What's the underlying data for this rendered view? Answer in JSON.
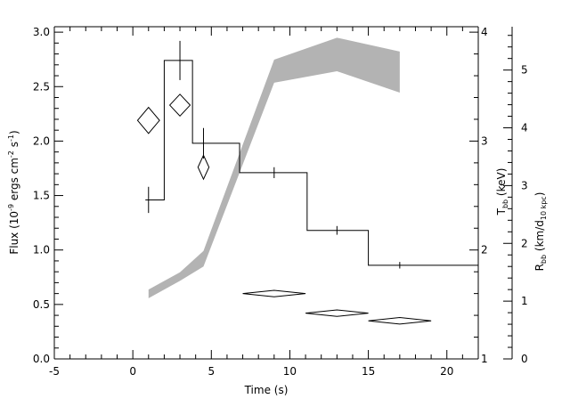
{
  "chart_data": {
    "type": "line",
    "xlabel": "Time (s)",
    "xlim": [
      -5,
      22
    ],
    "xticks": [
      -5,
      0,
      5,
      10,
      15,
      20
    ],
    "left_axis": {
      "label_main": "Flux (10",
      "label_exp1": "-9",
      "label_mid": " ergs cm",
      "label_exp2": "-2",
      "label_mid2": " s",
      "label_exp3": "-1",
      "label_end": ")",
      "ylim": [
        0,
        3.05
      ],
      "ticks": [
        "0.0",
        "0.5",
        "1.0",
        "1.5",
        "2.0",
        "2.5",
        "3.0"
      ]
    },
    "temp_axis": {
      "label_main": "T",
      "label_sub": "bb",
      "label_end": " (keV)",
      "ylim": [
        1,
        4.05
      ],
      "ticks": [
        "1",
        "2",
        "3",
        "4"
      ]
    },
    "radius_axis": {
      "label_main": "R",
      "label_sub": "bb",
      "label_mid": " (km/d",
      "label_sub2": "10 kpc",
      "label_end": ")",
      "ylim": [
        0,
        5.75
      ],
      "ticks": [
        "0",
        "1",
        "2",
        "3",
        "4",
        "5"
      ]
    },
    "series": [
      {
        "kind": "flux-histogram",
        "axis": "flux",
        "bins": [
          {
            "x0": 0.8,
            "x1": 2.0,
            "y": 1.46,
            "xc": 1.0,
            "yerr": 0.12
          },
          {
            "x0": 2.0,
            "x1": 3.8,
            "y": 2.74,
            "xc": 3.0,
            "yerr": 0.18
          },
          {
            "x0": 3.8,
            "x1": 6.8,
            "y": 1.98,
            "xc": 4.5,
            "yerr": 0.14
          },
          {
            "x0": 6.8,
            "x1": 11.1,
            "y": 1.71,
            "xc": 9.0,
            "yerr": 0.05
          },
          {
            "x0": 11.1,
            "x1": 15.0,
            "y": 1.18,
            "xc": 13.0,
            "yerr": 0.04
          },
          {
            "x0": 15.0,
            "x1": 22.0,
            "y": 0.86,
            "xc": 17.0,
            "yerr": 0.03
          }
        ]
      },
      {
        "kind": "temperature-diamonds",
        "axis": "temperature",
        "points": [
          {
            "x": 1.0,
            "xerr": 0.7,
            "y": 3.19,
            "yerr": 0.12
          },
          {
            "x": 3.0,
            "xerr": 0.65,
            "y": 3.33,
            "yerr": 0.1
          },
          {
            "x": 4.5,
            "xerr": 0.35,
            "y": 2.76,
            "yerr": 0.11
          },
          {
            "x": 9.0,
            "xerr": 2.0,
            "y": 1.6,
            "yerr": 0.03
          },
          {
            "x": 13.0,
            "xerr": 2.0,
            "y": 1.42,
            "yerr": 0.03
          },
          {
            "x": 17.0,
            "xerr": 2.0,
            "y": 1.35,
            "yerr": 0.03
          }
        ]
      },
      {
        "kind": "radius-band",
        "axis": "radius",
        "x": [
          1.0,
          3.0,
          4.5,
          9.0,
          13.0,
          17.0
        ],
        "lower": [
          1.05,
          1.35,
          1.6,
          4.78,
          4.98,
          4.61
        ],
        "upper": [
          1.2,
          1.5,
          1.87,
          5.18,
          5.56,
          5.32
        ]
      }
    ],
    "colors": {
      "axis": "#000000",
      "band": "#b3b3b3",
      "line": "#000000"
    }
  }
}
